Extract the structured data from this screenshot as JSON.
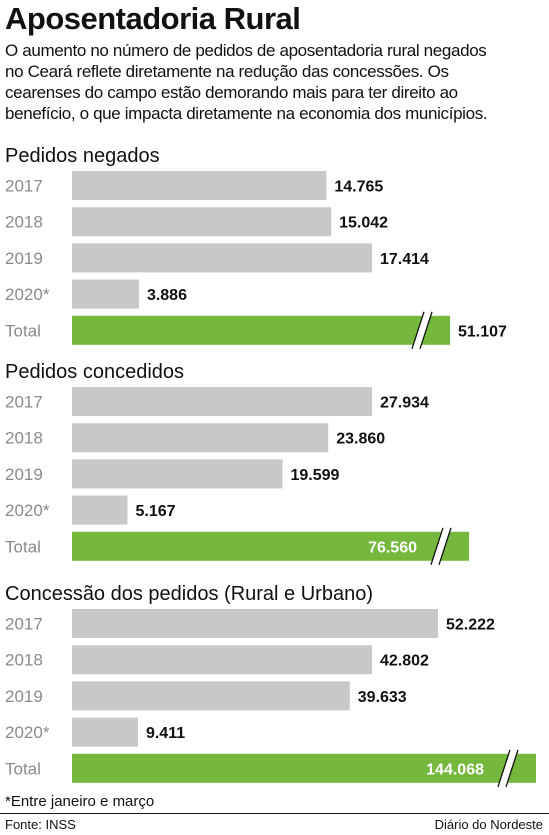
{
  "title": "Aposentadoria Rural",
  "intro_lines": [
    "O aumento no número de pedidos de aposentadoria rural negados",
    "no Ceará reflete diretamente na redução das concessões. Os",
    "cearenses do campo estão demorando mais para ter direito ao",
    "benefício, o que impacta diretamente na economia dos municípios."
  ],
  "colors": {
    "bar": "#c8c8c8",
    "total_bar": "#76b73e"
  },
  "chart_data": [
    {
      "type": "bar",
      "orientation": "horizontal",
      "title": "Pedidos negados",
      "categories": [
        "2017",
        "2018",
        "2019",
        "2020*",
        "Total"
      ],
      "values": [
        14765,
        15042,
        17414,
        3886,
        51107
      ],
      "labels": [
        "14.765",
        "15.042",
        "17.414",
        "3.886",
        "51.107"
      ],
      "total_bar_broken_axis": true
    },
    {
      "type": "bar",
      "orientation": "horizontal",
      "title": "Pedidos concedidos",
      "categories": [
        "2017",
        "2018",
        "2019",
        "2020*",
        "Total"
      ],
      "values": [
        27934,
        23860,
        19599,
        5167,
        76560
      ],
      "labels": [
        "27.934",
        "23.860",
        "19.599",
        "5.167",
        "76.560"
      ],
      "total_bar_broken_axis": true
    },
    {
      "type": "bar",
      "orientation": "horizontal",
      "title": "Concessão dos pedidos (Rural e Urbano)",
      "categories": [
        "2017",
        "2018",
        "2019",
        "2020*",
        "Total"
      ],
      "values": [
        52222,
        42802,
        39633,
        9411,
        144068
      ],
      "labels": [
        "52.222",
        "42.802",
        "39.633",
        "9.411",
        "144.068"
      ],
      "total_bar_broken_axis": true
    }
  ],
  "footnote": "*Entre janeiro e março",
  "source": "Fonte: INSS",
  "credit": "Diário do Nordeste"
}
